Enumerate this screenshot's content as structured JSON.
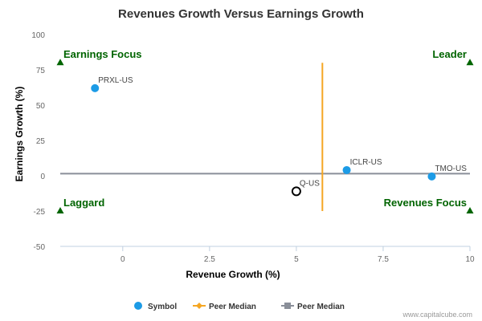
{
  "chart_data": {
    "type": "scatter",
    "title": "Revenues Growth Versus Earnings Growth",
    "xlabel": "Revenue Growth (%)",
    "ylabel": "Earnings Growth (%)",
    "xlim": [
      -1.8,
      10
    ],
    "ylim": [
      -50,
      100
    ],
    "x_ticks": [
      0,
      2.5,
      5,
      7.5,
      10
    ],
    "x_tick_labels": [
      "0",
      "2.5",
      "5",
      "7.5",
      "10"
    ],
    "y_ticks": [
      -50,
      -25,
      0,
      25,
      50,
      75,
      100
    ],
    "y_tick_labels": [
      "-50",
      "-25",
      "0",
      "25",
      "50",
      "75",
      "100"
    ],
    "grid": false,
    "points": [
      {
        "label": "PRXL-US",
        "x": -0.8,
        "y": 62,
        "style": "filled"
      },
      {
        "label": "ICLR-US",
        "x": 6.45,
        "y": 4,
        "style": "filled"
      },
      {
        "label": "TMO-US",
        "x": 8.9,
        "y": -0.5,
        "style": "filled"
      },
      {
        "label": "Q-US",
        "x": 5.0,
        "y": -11,
        "style": "hollow"
      }
    ],
    "peer_median_revenue": 5.75,
    "peer_median_earnings": 1.5,
    "revenue_median_line_y_range": [
      -25,
      80
    ],
    "quadrants": [
      {
        "label": "Earnings Focus",
        "x": -1.8,
        "y": 80,
        "align": "left"
      },
      {
        "label": "Leader",
        "x": 10,
        "y": 80,
        "align": "right"
      },
      {
        "label": "Laggard",
        "x": -1.8,
        "y": -25,
        "align": "left"
      },
      {
        "label": "Revenues Focus",
        "x": 10,
        "y": -25,
        "align": "right"
      }
    ],
    "legend": {
      "placement": "bottom",
      "items": [
        {
          "label": "Symbol",
          "kind": "dot"
        },
        {
          "label": "Peer Median",
          "kind": "line-diamond"
        },
        {
          "label": "Peer Median",
          "kind": "line-square"
        }
      ]
    },
    "colors": {
      "point": "#1c9be6",
      "revenue_median": "#f5a623",
      "earnings_median": "#8a8f99",
      "quadrant": "#006400",
      "axis": "#c0d0e0"
    }
  },
  "credit": "www.capitalcube.com"
}
